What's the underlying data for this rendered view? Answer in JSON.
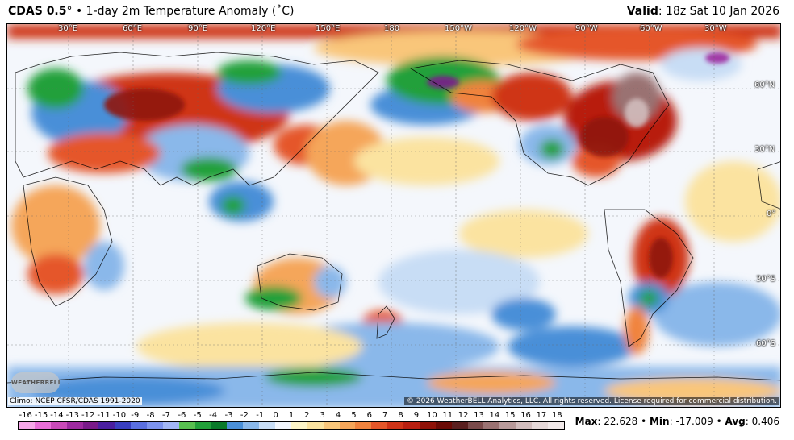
{
  "header": {
    "model": "CDAS 0.5",
    "degree_symbol": "°",
    "bullet": " • ",
    "product": "1-day 2m Temperature Anomaly (˚C)",
    "valid_label": "Valid",
    "valid_time": ": 18z Sat 10 Jan 2026"
  },
  "map": {
    "lon_labels": [
      "30°E",
      "60°E",
      "90°E",
      "120°E",
      "150°E",
      "180",
      "150°W",
      "120°W",
      "90°W",
      "60°W",
      "30°W"
    ],
    "lat_labels": [
      "60°N",
      "30°N",
      "0°",
      "30°S",
      "60°S"
    ]
  },
  "footer": {
    "climo": "Climo: NCEP CFSR/CDAS 1991-2020",
    "copyright": "© 2026 WeatherBELL Analytics, LLC. All rights reserved. License required for commercial distribution.",
    "logo_text": "WEATHERBELL"
  },
  "legend": {
    "ticks": [
      "-16",
      "-15",
      "-14",
      "-13",
      "-12",
      "-11",
      "-10",
      "-9",
      "-8",
      "-7",
      "-6",
      "-5",
      "-4",
      "-3",
      "-2",
      "-1",
      "0",
      "1",
      "2",
      "3",
      "4",
      "5",
      "6",
      "7",
      "8",
      "9",
      "10",
      "11",
      "12",
      "13",
      "14",
      "15",
      "16",
      "17",
      "18"
    ],
    "colors": [
      "#f7a8ea",
      "#ea6fd9",
      "#c94ab8",
      "#9e2aa0",
      "#7a1a8a",
      "#4b1fa0",
      "#3a3fc0",
      "#5a6fe0",
      "#7d93ee",
      "#a2b6f6",
      "#58c050",
      "#22a03a",
      "#0a7a2a",
      "#4a8fd8",
      "#8ab8ea",
      "#c8ddf5",
      "#f2f6fc",
      "#fdf5c8",
      "#fbe3a0",
      "#f9c67a",
      "#f5a65a",
      "#f0833e",
      "#e5572a",
      "#cf3418",
      "#b81f10",
      "#8f1208",
      "#6a0a05",
      "#5a1f1f",
      "#7a4a4a",
      "#9a7272",
      "#b89a9a",
      "#d2bdbd",
      "#e6d9d9",
      "#f2eaea"
    ]
  },
  "stats": {
    "max_label": "Max",
    "max_value": ": 22.628",
    "sep1": " • ",
    "min_label": "Min",
    "min_value": ": -17.009",
    "sep2": " • ",
    "avg_label": "Avg",
    "avg_value": ": 0.406"
  }
}
